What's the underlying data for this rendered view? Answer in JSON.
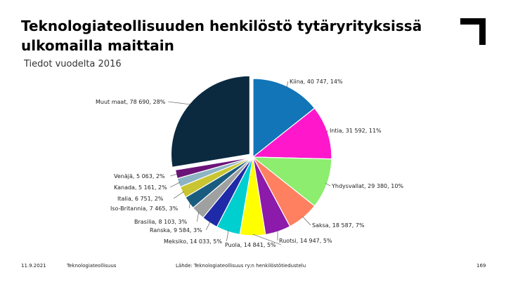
{
  "slide": {
    "title": "Teknologiateollisuuden henkilöstö tytäryrityksissä ulkomailla maittain",
    "subtitle": "Tiedot vuodelta 2016"
  },
  "footer": {
    "date": "11.9.2021",
    "organization": "Teknologiateollisuus",
    "source": "Lähde: Teknologiateollisuus ry:n henkilöstötiedustelu",
    "page": "169"
  },
  "logo": {
    "icon": "corner-bracket-logo",
    "color": "#000000"
  },
  "chart_data": {
    "type": "pie",
    "title": "",
    "start": "top, clockwise",
    "exploded_slice": "Muut maat",
    "slices": [
      {
        "name": "Kiina",
        "value": 40747,
        "percent": 14,
        "label": "Kiina, 40 747, 14%",
        "color": "#1175B8"
      },
      {
        "name": "Intia",
        "value": 31592,
        "percent": 11,
        "label": "Intia, 31 592, 11%",
        "color": "#FF17CC"
      },
      {
        "name": "Yhdysvallat",
        "value": 29380,
        "percent": 10,
        "label": "Yhdysvallat, 29 380, 10%",
        "color": "#8CED6E"
      },
      {
        "name": "Saksa",
        "value": 18587,
        "percent": 7,
        "label": "Saksa, 18 587, 7%",
        "color": "#FF8060"
      },
      {
        "name": "Ruotsi",
        "value": 14947,
        "percent": 5,
        "label": "Ruotsi, 14 947, 5%",
        "color": "#8C1AAA"
      },
      {
        "name": "Puola",
        "value": 14841,
        "percent": 5,
        "label": "Puola, 14 841, 5%",
        "color": "#FFFF00"
      },
      {
        "name": "Meksiko",
        "value": 14033,
        "percent": 5,
        "label": "Meksiko, 14 033, 5%",
        "color": "#00CFCF"
      },
      {
        "name": "Ranska",
        "value": 9584,
        "percent": 3,
        "label": "Ranska, 9 584, 3%",
        "color": "#1F2AA8"
      },
      {
        "name": "Brasilia",
        "value": 8103,
        "percent": 3,
        "label": "Brasilia, 8 103, 3%",
        "color": "#9FA1A1"
      },
      {
        "name": "Iso-Britannia",
        "value": 7465,
        "percent": 3,
        "label": "Iso-Britannia, 7 465, 3%",
        "color": "#1A5C80"
      },
      {
        "name": "Italia",
        "value": 6751,
        "percent": 2,
        "label": "Italia, 6 751, 2%",
        "color": "#C9C532"
      },
      {
        "name": "Kanada",
        "value": 5161,
        "percent": 2,
        "label": "Kanada, 5 161, 2%",
        "color": "#8CB4C4"
      },
      {
        "name": "Venäjä",
        "value": 5063,
        "percent": 2,
        "label": "Venäjä, 5 063, 2%",
        "color": "#6B1478"
      },
      {
        "name": "Muut maat",
        "value": 78690,
        "percent": 28,
        "label": "Muut maat, 78 690, 28%",
        "color": "#0B2A40"
      }
    ]
  }
}
